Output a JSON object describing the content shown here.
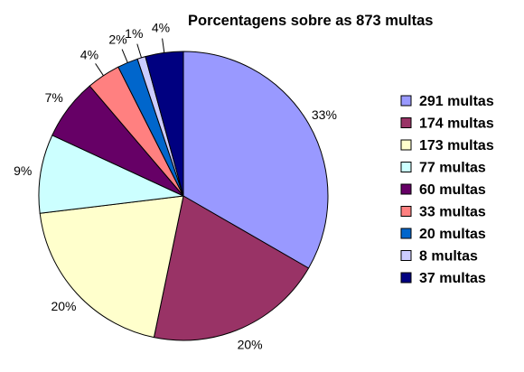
{
  "chart_data": {
    "type": "pie",
    "title": "Porcentagens sobre as 873 multas",
    "slices": [
      {
        "label": "291 multas",
        "value": 291,
        "percent_label": "33%",
        "color": "#9999FF"
      },
      {
        "label": "174 multas",
        "value": 174,
        "percent_label": "20%",
        "color": "#993366"
      },
      {
        "label": "173 multas",
        "value": 173,
        "percent_label": "20%",
        "color": "#FFFFCC"
      },
      {
        "label": "77 multas",
        "value": 77,
        "percent_label": "9%",
        "color": "#CCFFFF"
      },
      {
        "label": "60 multas",
        "value": 60,
        "percent_label": "7%",
        "color": "#660066"
      },
      {
        "label": "33 multas",
        "value": 33,
        "percent_label": "4%",
        "color": "#FF8080"
      },
      {
        "label": "20 multas",
        "value": 20,
        "percent_label": "2%",
        "color": "#0066CC"
      },
      {
        "label": "8 multas",
        "value": 8,
        "percent_label": "1%",
        "color": "#CCCCFF"
      },
      {
        "label": "37 multas",
        "value": 37,
        "percent_label": "4%",
        "color": "#000080"
      }
    ],
    "legend_position": "right",
    "start": "12 o'clock",
    "direction": "clockwise"
  }
}
